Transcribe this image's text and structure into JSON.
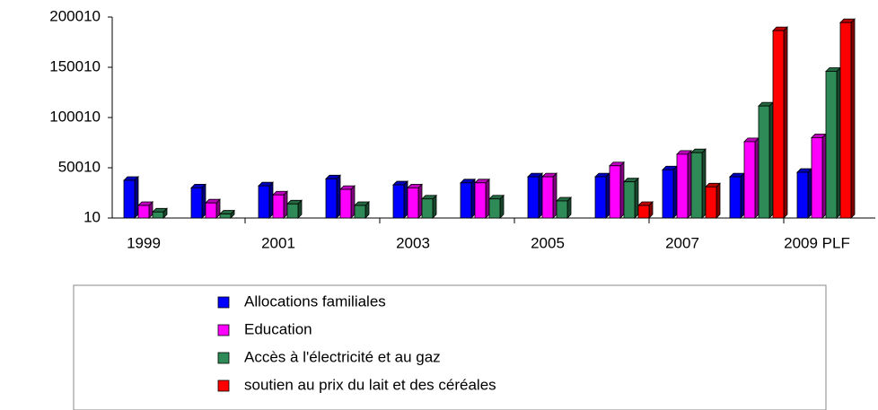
{
  "chart_data": {
    "type": "bar3d",
    "categories": [
      "1999",
      null,
      "2001",
      null,
      "2003",
      null,
      "2005",
      null,
      "2007",
      null,
      "2009 PLF"
    ],
    "series": [
      {
        "name": "Allocations familiales",
        "color": "#0000ff",
        "values": [
          37500,
          30000,
          32000,
          39000,
          33000,
          35000,
          41000,
          41000,
          48000,
          41000,
          45500
        ]
      },
      {
        "name": "Education",
        "color": "#ff00ff",
        "values": [
          12500,
          15000,
          23000,
          28500,
          30000,
          35000,
          41000,
          52000,
          63500,
          76000,
          80000
        ]
      },
      {
        "name": "Accès à l'électricité et au gaz",
        "color": "#2e8b57",
        "values": [
          6000,
          4000,
          14000,
          12500,
          19000,
          19000,
          17000,
          36000,
          65000,
          111500,
          146000
        ]
      },
      {
        "name": "soutien au prix du lait et des céréales",
        "color": "#ff0000",
        "values": [
          null,
          null,
          null,
          null,
          null,
          null,
          null,
          12500,
          31000,
          186500,
          194500
        ]
      }
    ],
    "ylim": [
      10,
      200010
    ],
    "yticks": [
      10,
      50010,
      100010,
      150010,
      200010
    ],
    "grid": false,
    "legend": "bottom"
  }
}
